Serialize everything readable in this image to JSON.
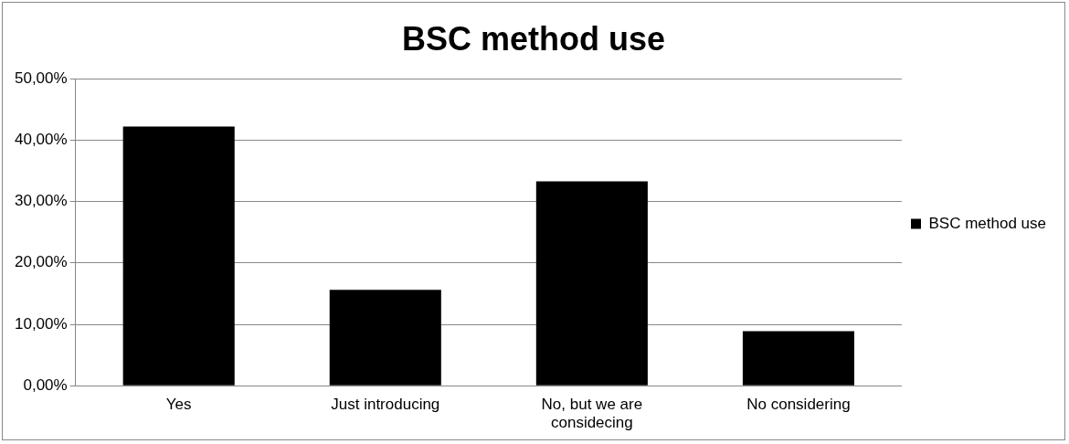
{
  "chart_data": {
    "type": "bar",
    "title": "BSC method use",
    "categories": [
      "Yes",
      "Just introducing",
      "No, but we are considecing",
      "No considering"
    ],
    "series": [
      {
        "name": "BSC method use",
        "color": "#000000",
        "values": [
          42.2,
          15.6,
          33.3,
          8.9
        ]
      }
    ],
    "ylim": [
      0,
      50
    ],
    "yticks": [
      {
        "value": 0,
        "label": "0,00%"
      },
      {
        "value": 10,
        "label": "10,00%"
      },
      {
        "value": 20,
        "label": "20,00%"
      },
      {
        "value": 30,
        "label": "30,00%"
      },
      {
        "value": 40,
        "label": "40,00%"
      },
      {
        "value": 50,
        "label": "50,00%"
      }
    ],
    "grid": "y",
    "legend": "right"
  }
}
